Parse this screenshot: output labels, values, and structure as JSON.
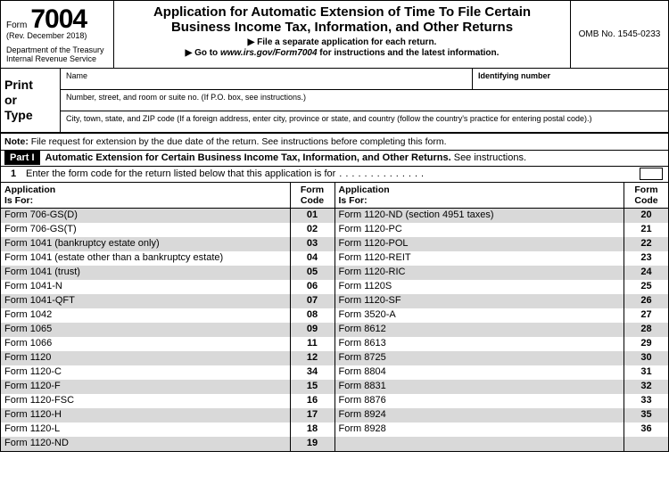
{
  "header": {
    "form_prefix": "Form",
    "form_number": "7004",
    "revision": "(Rev. December 2018)",
    "department": "Department of the Treasury\nInternal Revenue Service",
    "title_line1": "Application for Automatic Extension of Time To File Certain",
    "title_line2": "Business Income Tax, Information, and Other Returns",
    "sub1": "File a separate application for each return.",
    "sub2_prefix": "Go to ",
    "sub2_url": "www.irs.gov/Form7004",
    "sub2_suffix": " for instructions and the latest information.",
    "omb": "OMB No. 1545-0233"
  },
  "pot": {
    "heading": "Print\nor\nType",
    "name_label": "Name",
    "id_label": "Identifying number",
    "addr1": "Number, street, and room or suite no. (If P.O. box, see instructions.)",
    "addr2": "City, town, state, and ZIP code (If a foreign address, enter city, province or state, and country (follow the country's practice for entering postal code).)"
  },
  "note_label": "Note:",
  "note_text": " File request for extension by the due date of the return. See instructions before completing this form.",
  "part": {
    "badge": "Part I",
    "bold": "Automatic Extension for Certain Business Income Tax, Information, and Other Returns.",
    "tail": " See instructions."
  },
  "line1": {
    "num": "1",
    "text": "Enter the form code for the return listed below that this application is for"
  },
  "table": {
    "app_header_l1": "Application",
    "app_header_l2": "Is For:",
    "code_header_l1": "Form",
    "code_header_l2": "Code",
    "left": [
      {
        "app": "Form 706-GS(D)",
        "code": "01"
      },
      {
        "app": "Form 706-GS(T)",
        "code": "02"
      },
      {
        "app": "Form 1041 (bankruptcy estate only)",
        "code": "03"
      },
      {
        "app": "Form 1041 (estate other than a bankruptcy estate)",
        "code": "04"
      },
      {
        "app": "Form 1041 (trust)",
        "code": "05"
      },
      {
        "app": "Form 1041-N",
        "code": "06"
      },
      {
        "app": "Form 1041-QFT",
        "code": "07"
      },
      {
        "app": "Form 1042",
        "code": "08"
      },
      {
        "app": "Form 1065",
        "code": "09"
      },
      {
        "app": "Form 1066",
        "code": "11"
      },
      {
        "app": "Form 1120",
        "code": "12"
      },
      {
        "app": "Form 1120-C",
        "code": "34"
      },
      {
        "app": "Form 1120-F",
        "code": "15"
      },
      {
        "app": "Form 1120-FSC",
        "code": "16"
      },
      {
        "app": "Form 1120-H",
        "code": "17"
      },
      {
        "app": "Form 1120-L",
        "code": "18"
      },
      {
        "app": "Form 1120-ND",
        "code": "19"
      }
    ],
    "right": [
      {
        "app": "Form 1120-ND (section 4951 taxes)",
        "code": "20"
      },
      {
        "app": "Form 1120-PC",
        "code": "21"
      },
      {
        "app": "Form 1120-POL",
        "code": "22"
      },
      {
        "app": "Form 1120-REIT",
        "code": "23"
      },
      {
        "app": "Form 1120-RIC",
        "code": "24"
      },
      {
        "app": "Form 1120S",
        "code": "25"
      },
      {
        "app": "Form 1120-SF",
        "code": "26"
      },
      {
        "app": "Form 3520-A",
        "code": "27"
      },
      {
        "app": "Form 8612",
        "code": "28"
      },
      {
        "app": "Form 8613",
        "code": "29"
      },
      {
        "app": "Form 8725",
        "code": "30"
      },
      {
        "app": "Form 8804",
        "code": "31"
      },
      {
        "app": "Form 8831",
        "code": "32"
      },
      {
        "app": "Form 8876",
        "code": "33"
      },
      {
        "app": "Form 8924",
        "code": "35"
      },
      {
        "app": "Form 8928",
        "code": "36"
      },
      {
        "app": "",
        "code": ""
      }
    ]
  }
}
